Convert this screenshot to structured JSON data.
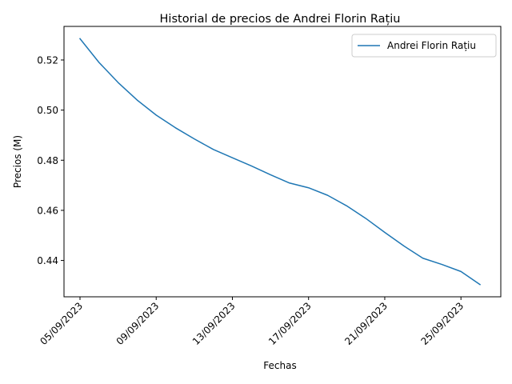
{
  "chart_data": {
    "type": "line",
    "title": "Historial de precios de Andrei Florin Rațiu",
    "xlabel": "Fechas",
    "ylabel": "Precios (M)",
    "x": [
      "05/09/2023",
      "06/09/2023",
      "07/09/2023",
      "08/09/2023",
      "09/09/2023",
      "10/09/2023",
      "11/09/2023",
      "12/09/2023",
      "13/09/2023",
      "14/09/2023",
      "15/09/2023",
      "16/09/2023",
      "17/09/2023",
      "18/09/2023",
      "19/09/2023",
      "20/09/2023",
      "21/09/2023",
      "22/09/2023",
      "23/09/2023",
      "24/09/2023",
      "25/09/2023",
      "26/09/2023"
    ],
    "series": [
      {
        "name": "Andrei Florin Rațiu",
        "color": "#1f77b4",
        "values": [
          0.5285,
          0.519,
          0.511,
          0.504,
          0.498,
          0.493,
          0.4885,
          0.4843,
          0.481,
          0.4777,
          0.4742,
          0.4709,
          0.469,
          0.466,
          0.4618,
          0.4568,
          0.4512,
          0.4458,
          0.4409,
          0.4384,
          0.4356,
          0.4304
        ]
      }
    ],
    "x_ticks": [
      "05/09/2023",
      "09/09/2023",
      "13/09/2023",
      "17/09/2023",
      "21/09/2023",
      "25/09/2023"
    ],
    "y_ticks": [
      0.44,
      0.46,
      0.48,
      0.5,
      0.52
    ],
    "y_tick_labels": [
      "0.44",
      "0.46",
      "0.48",
      "0.50",
      "0.52"
    ],
    "ylim": [
      0.4255,
      0.5334
    ],
    "grid": false,
    "legend_placement": "upper-right"
  }
}
